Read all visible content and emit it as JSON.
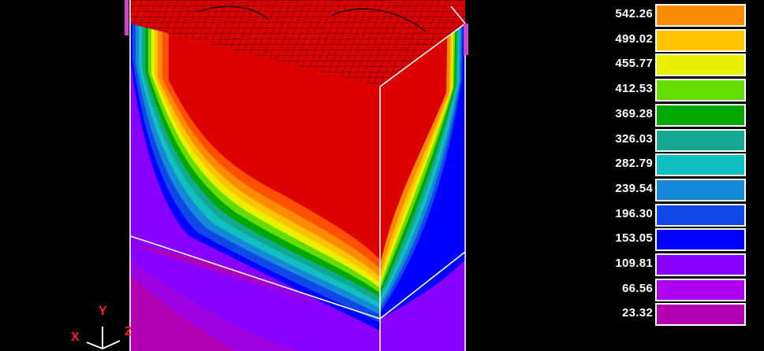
{
  "legend": {
    "levels": [
      {
        "value": "542.26",
        "color": "#ff8c00"
      },
      {
        "value": "499.02",
        "color": "#ffc400"
      },
      {
        "value": "455.77",
        "color": "#e8f000"
      },
      {
        "value": "412.53",
        "color": "#66dd00"
      },
      {
        "value": "369.28",
        "color": "#00a800"
      },
      {
        "value": "326.03",
        "color": "#15a890"
      },
      {
        "value": "282.79",
        "color": "#10c0c0"
      },
      {
        "value": "239.54",
        "color": "#1688d8"
      },
      {
        "value": "196.30",
        "color": "#1048e8"
      },
      {
        "value": "153.05",
        "color": "#0000ff"
      },
      {
        "value": "109.81",
        "color": "#8800ff"
      },
      {
        "value": "66.56",
        "color": "#b000f0"
      },
      {
        "value": "23.32",
        "color": "#b000b0"
      }
    ]
  },
  "axes": {
    "x_label": "X",
    "y_label": "Y",
    "z_label": "Z"
  },
  "colors": {
    "background": "#000000",
    "hot": "#dd0000",
    "edge": "#ffffff"
  }
}
